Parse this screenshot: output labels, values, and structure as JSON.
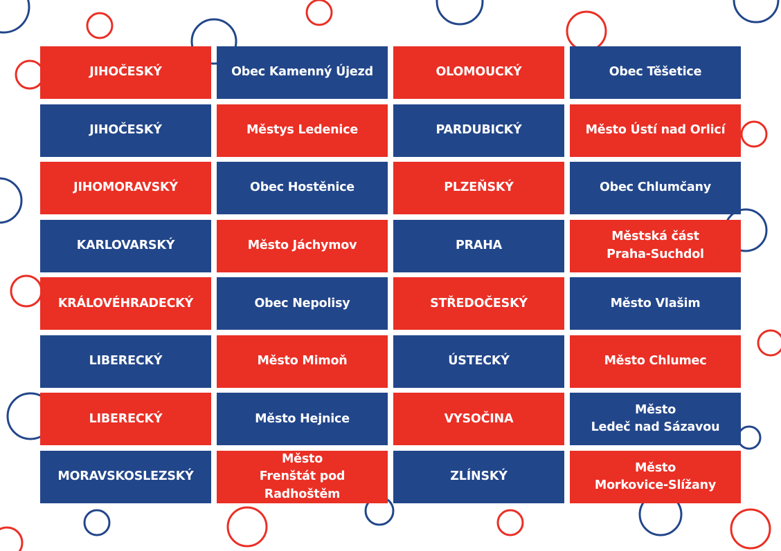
{
  "colors": {
    "red": "#ea2f25",
    "blue": "#22468a",
    "background": "#ffffff"
  },
  "rows": [
    {
      "left": {
        "region": "JIHOČESKÝ",
        "municipality": "Obec Kamenný Újezd",
        "region_color": "red"
      },
      "right": {
        "region": "OLOMOUCKÝ",
        "municipality": "Obec Těšetice",
        "region_color": "red"
      }
    },
    {
      "left": {
        "region": "JIHOČESKÝ",
        "municipality": "Městys Ledenice",
        "region_color": "blue"
      },
      "right": {
        "region": "PARDUBICKÝ",
        "municipality": "Město Ústí nad Orlicí",
        "region_color": "blue"
      }
    },
    {
      "left": {
        "region": "JIHOMORAVSKÝ",
        "municipality": "Obec Hostěnice",
        "region_color": "red"
      },
      "right": {
        "region": "PLZEŇSKÝ",
        "municipality": "Obec Chlumčany",
        "region_color": "red"
      }
    },
    {
      "left": {
        "region": "KARLOVARSKÝ",
        "municipality": "Město Jáchymov",
        "region_color": "blue"
      },
      "right": {
        "region": "PRAHA",
        "municipality": "Městská část\nPraha-Suchdol",
        "region_color": "blue"
      }
    },
    {
      "left": {
        "region": "KRÁLOVÉHRADECKÝ",
        "municipality": "Obec Nepolisy",
        "region_color": "red"
      },
      "right": {
        "region": "STŘEDOČESKÝ",
        "municipality": "Město Vlašim",
        "region_color": "red"
      }
    },
    {
      "left": {
        "region": "LIBERECKÝ",
        "municipality": "Město Mimoň",
        "region_color": "blue"
      },
      "right": {
        "region": "ÚSTECKÝ",
        "municipality": "Město Chlumec",
        "region_color": "blue"
      }
    },
    {
      "left": {
        "region": "LIBERECKÝ",
        "municipality": "Město Hejnice",
        "region_color": "red"
      },
      "right": {
        "region": "VYSOČINA",
        "municipality": "Město\nLedeč nad Sázavou",
        "region_color": "red"
      }
    },
    {
      "left": {
        "region": "MORAVSKOSLEZSKÝ",
        "municipality": "Město\nFrenštát pod Radhoštěm",
        "region_color": "blue"
      },
      "right": {
        "region": "ZLÍNSKÝ",
        "municipality": "Město\nMorkovice-Slížany",
        "region_color": "blue"
      }
    }
  ]
}
